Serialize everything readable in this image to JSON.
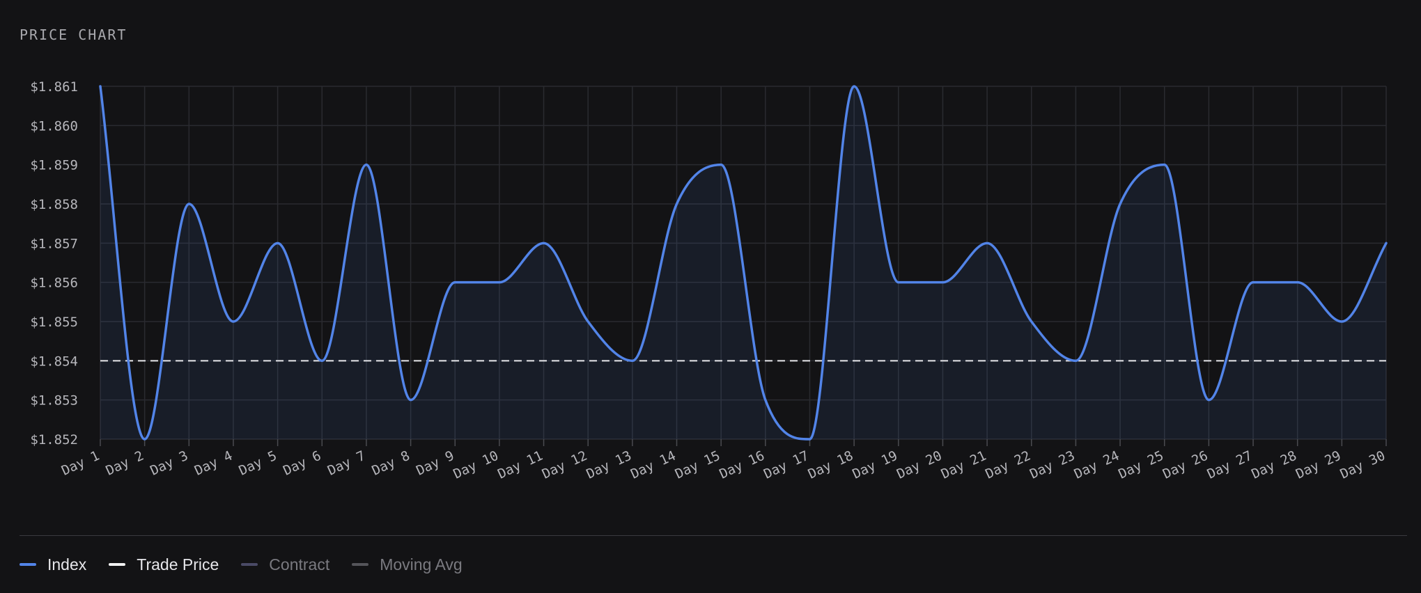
{
  "header": {
    "title": "PRICE CHART"
  },
  "legend": [
    {
      "label": "Index",
      "color": "#5284e8",
      "text_color": "#e6e6ea"
    },
    {
      "label": "Trade Price",
      "color": "#f2f2f2",
      "text_color": "#e6e6ea"
    },
    {
      "label": "Contract",
      "color": "#4a4a66",
      "text_color": "#7a7a80"
    },
    {
      "label": "Moving Avg",
      "color": "#55555a",
      "text_color": "#7a7a80"
    }
  ],
  "chart_data": {
    "type": "area",
    "title": "PRICE CHART",
    "categories": [
      "Day 1",
      "Day 2",
      "Day 3",
      "Day 4",
      "Day 5",
      "Day 6",
      "Day 7",
      "Day 8",
      "Day 9",
      "Day 10",
      "Day 11",
      "Day 12",
      "Day 13",
      "Day 14",
      "Day 15",
      "Day 16",
      "Day 17",
      "Day 18",
      "Day 19",
      "Day 20",
      "Day 21",
      "Day 22",
      "Day 23",
      "Day 24",
      "Day 25",
      "Day 26",
      "Day 27",
      "Day 28",
      "Day 29",
      "Day 30"
    ],
    "series": [
      {
        "name": "Index",
        "color": "#5284e8",
        "values": [
          1.861,
          1.852,
          1.858,
          1.855,
          1.857,
          1.854,
          1.859,
          1.853,
          1.856,
          1.856,
          1.857,
          1.855,
          1.854,
          1.858,
          1.859,
          1.853,
          1.852,
          1.861,
          1.856,
          1.856,
          1.857,
          1.855,
          1.854,
          1.858,
          1.859,
          1.853,
          1.856,
          1.856,
          1.855,
          1.857
        ]
      },
      {
        "name": "Trade Price",
        "color": "#f2f2f2",
        "style": "dashed",
        "value": 1.854
      }
    ],
    "yticks": [
      "$1.861",
      "$1.860",
      "$1.859",
      "$1.858",
      "$1.857",
      "$1.856",
      "$1.855",
      "$1.854",
      "$1.853",
      "$1.852"
    ],
    "ylim": [
      1.852,
      1.861
    ],
    "grid": true,
    "legend_position": "bottom-left"
  }
}
